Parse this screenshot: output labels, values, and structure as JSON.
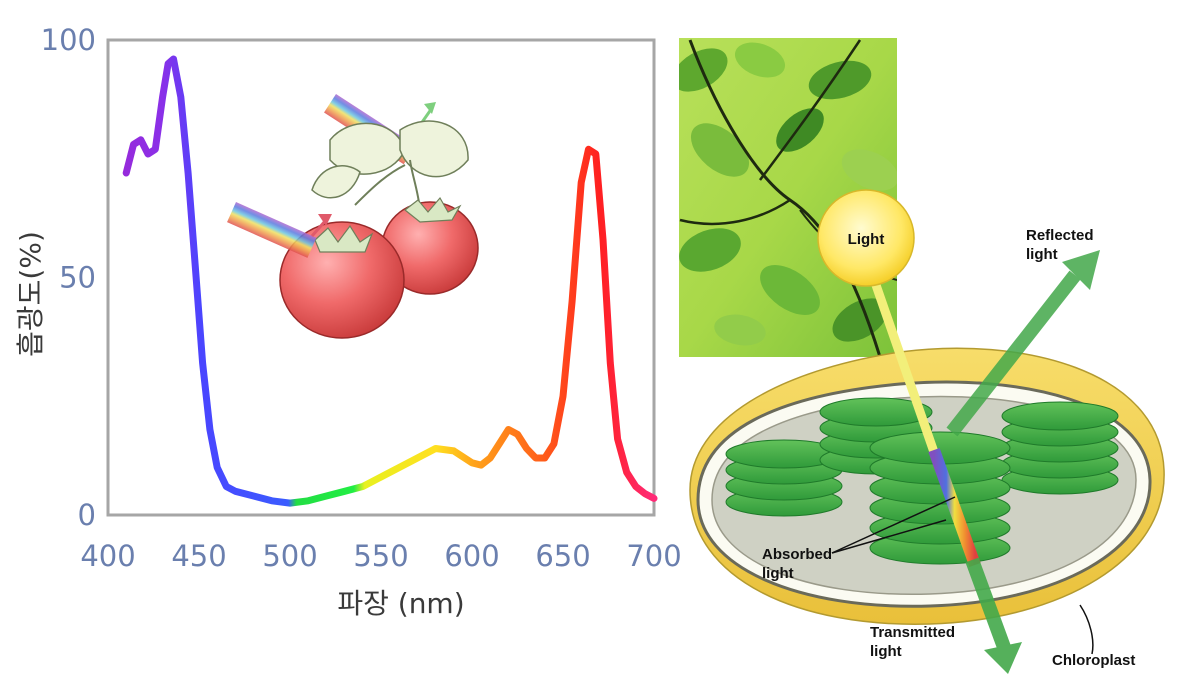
{
  "chart_data": {
    "type": "line",
    "xlabel": "파장 (nm)",
    "ylabel": "흡광도(%)",
    "xlim": [
      400,
      700
    ],
    "ylim": [
      0,
      100
    ],
    "x_ticks": [
      400,
      450,
      500,
      550,
      600,
      650,
      700
    ],
    "y_ticks": [
      0,
      50,
      100
    ],
    "grid": false,
    "series": [
      {
        "x": [
          410,
          414,
          418,
          422,
          426,
          430,
          433,
          436,
          440,
          444,
          448,
          452,
          456,
          460,
          465,
          470,
          480,
          490,
          500,
          510,
          520,
          530,
          540,
          550,
          560,
          570,
          580,
          590,
          600,
          605,
          610,
          615,
          620,
          625,
          630,
          635,
          640,
          645,
          650,
          655,
          660,
          664,
          668,
          672,
          676,
          680,
          685,
          690,
          695,
          700
        ],
        "y": [
          72,
          78,
          79,
          76,
          77,
          88,
          95,
          96,
          88,
          72,
          52,
          32,
          18,
          10,
          6,
          5,
          4,
          3,
          2.5,
          3,
          4,
          5,
          6,
          8,
          10,
          12,
          14,
          13.5,
          11,
          10.5,
          12,
          15,
          18,
          17,
          14,
          12,
          12,
          15,
          25,
          45,
          70,
          77,
          76,
          58,
          32,
          16,
          9,
          6,
          4.5,
          3.5
        ]
      }
    ]
  },
  "diagram": {
    "light_label": "Light",
    "reflected_label": "Reflected\nlight",
    "absorbed_label": "Absorbed\nlight",
    "transmitted_label": "Transmitted\nlight",
    "chloroplast_label": "Chloroplast"
  }
}
